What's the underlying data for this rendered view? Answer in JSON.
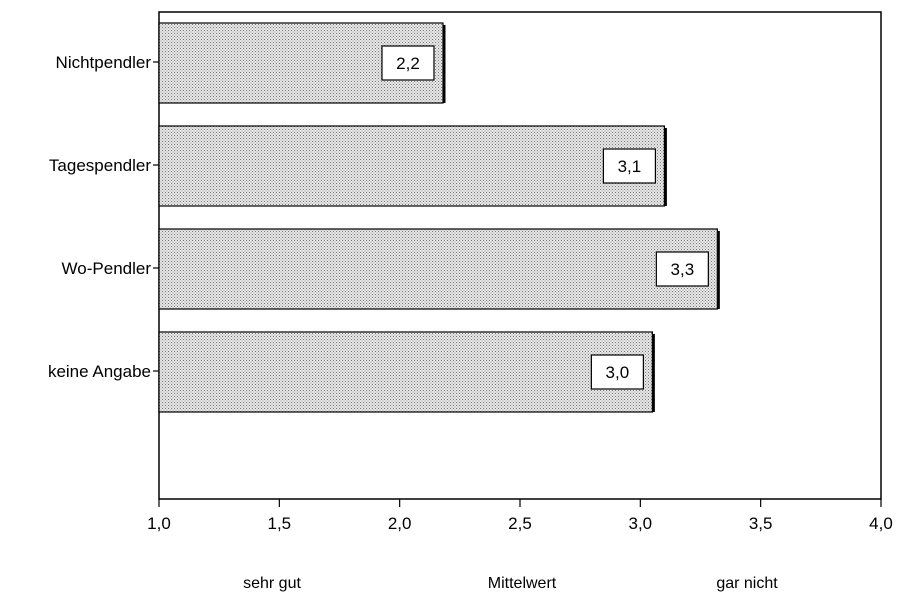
{
  "chart_data": {
    "type": "bar",
    "orientation": "horizontal",
    "categories": [
      "Nichtpendler",
      "Tagespendler",
      "Wo-Pendler",
      "keine Angabe"
    ],
    "values": [
      2.18,
      3.1,
      3.32,
      3.05
    ],
    "value_labels": [
      "2,2",
      "3,1",
      "3,3",
      "3,0"
    ],
    "xlim": [
      1.0,
      4.0
    ],
    "x_ticks": [
      1.0,
      1.5,
      2.0,
      2.5,
      3.0,
      3.5,
      4.0
    ],
    "x_tick_labels": [
      "1,0",
      "1,5",
      "2,0",
      "2,5",
      "3,0",
      "3,5",
      "4,0"
    ],
    "bottom_labels": {
      "left": "sehr gut",
      "center": "Mittelwert",
      "right": "gar nicht"
    },
    "grid": false,
    "legend": "none",
    "bar_color": "#cfcfcf"
  }
}
